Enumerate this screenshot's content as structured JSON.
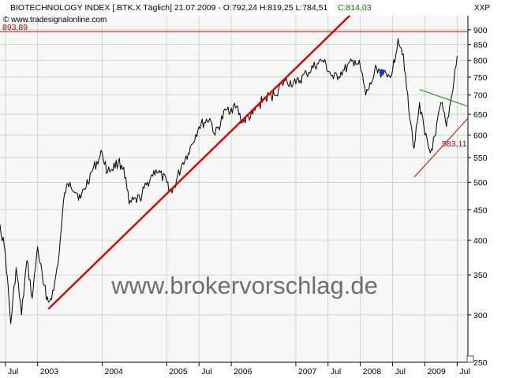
{
  "header": {
    "title": "BIOTECHNOLOGY INDEX [.BTK.X  Täglich] 21.07.2009 - O:792,24 H:819,25 L:784,51",
    "close_label": "C:814,03",
    "copyright": "© www.tradesignalonline.com",
    "symbol": "XXP"
  },
  "watermark": "www.brokervorschlag.de",
  "colors": {
    "background": "#ffffff",
    "plot_background": "#f7f7f7",
    "grid": "#b9d6b9",
    "price": "#000000",
    "trend_main": "#e00000",
    "trend_low": "#e00000",
    "trend_high": "#008000",
    "level_line": "#e00000",
    "close_text": "#008000",
    "level_text": "#c00000",
    "marker": "#1a33cc"
  },
  "chart_data": {
    "type": "line",
    "title": "BIOTECHNOLOGY INDEX [.BTK.X  Täglich] 21.07.2009 - O:792,24 H:819,25 L:784,51 C:814,03",
    "x_range": [
      "2002-06",
      "2009-09"
    ],
    "y_range": [
      250,
      950
    ],
    "y_scale": "log",
    "grid": true,
    "x_tick_labels": [
      "Jul",
      "2003",
      "2004",
      "2005",
      "Jul",
      "2006",
      "2007",
      "Jul",
      "2008",
      "Jul",
      "2009",
      "Jul"
    ],
    "x_ticks": [
      "2002-07",
      "2003-01",
      "2004-01",
      "2005-01",
      "2005-07",
      "2006-01",
      "2007-01",
      "2007-07",
      "2008-01",
      "2008-07",
      "2009-01",
      "2009-07"
    ],
    "y_ticks": [
      250,
      300,
      350,
      400,
      450,
      500,
      550,
      600,
      650,
      700,
      750,
      800,
      850,
      900
    ],
    "series": [
      {
        "values_x": [
          "2002-06",
          "2002-07",
          "2002-08",
          "2002-09",
          "2002-10",
          "2002-11",
          "2002-12",
          "2003-01",
          "2003-02",
          "2003-03",
          "2003-04",
          "2003-05",
          "2003-06",
          "2003-07",
          "2003-09",
          "2003-11",
          "2004-01",
          "2004-02",
          "2004-04",
          "2004-05",
          "2004-06",
          "2004-08",
          "2004-10",
          "2004-11",
          "2005-01",
          "2005-02",
          "2005-04",
          "2005-05",
          "2005-07",
          "2005-09",
          "2005-10",
          "2005-12",
          "2006-02",
          "2006-03",
          "2006-05",
          "2006-07",
          "2006-09",
          "2006-11",
          "2007-01",
          "2007-03",
          "2007-05",
          "2007-06",
          "2007-08",
          "2007-10",
          "2007-12",
          "2008-01",
          "2008-02",
          "2008-03",
          "2008-04",
          "2008-05",
          "2008-06",
          "2008-07",
          "2008-08",
          "2008-09",
          "2008-10",
          "2008-11",
          "2008-12",
          "2009-01",
          "2009-02",
          "2009-03",
          "2009-04",
          "2009-05",
          "2009-06",
          "2009-07"
        ],
        "values_y": [
          425,
          380,
          290,
          360,
          300,
          370,
          320,
          390,
          340,
          315,
          330,
          380,
          480,
          500,
          470,
          520,
          560,
          520,
          540,
          530,
          460,
          470,
          510,
          525,
          500,
          480,
          540,
          560,
          620,
          640,
          600,
          660,
          670,
          630,
          650,
          690,
          700,
          740,
          730,
          760,
          790,
          800,
          745,
          770,
          800,
          780,
          700,
          730,
          780,
          760,
          750,
          770,
          870,
          820,
          660,
          570,
          680,
          600,
          560,
          600,
          680,
          620,
          700,
          814
        ]
      }
    ],
    "trendlines": [
      {
        "name": "main-uptrend",
        "from": [
          "2003-03",
          307
        ],
        "to": [
          "2007-11",
          950
        ]
      },
      {
        "name": "lower-support",
        "from": [
          "2008-11",
          510
        ],
        "to": [
          "2009-09",
          640
        ]
      },
      {
        "name": "upper-resistance",
        "from": [
          "2008-12",
          715
        ],
        "to": [
          "2009-09",
          670
        ]
      }
    ],
    "horizontal_levels": [
      {
        "value": 893.89,
        "label": "893,89"
      }
    ],
    "annotations": [
      {
        "label": "583,11",
        "x": "2009-03",
        "y": 583.11
      }
    ],
    "marker": {
      "x": "2008-05",
      "y": 765
    }
  }
}
